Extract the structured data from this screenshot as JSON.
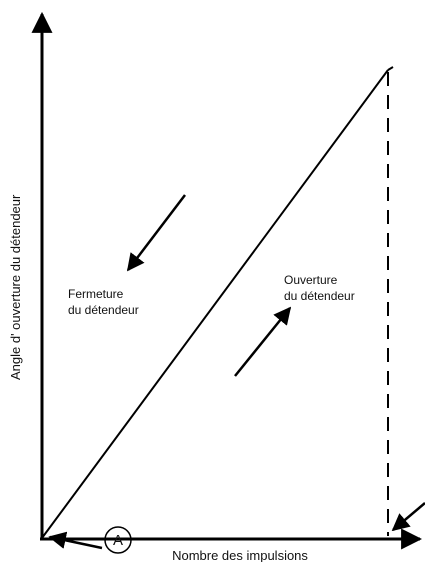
{
  "axes": {
    "y_label": "Angle d'  ouverture du détendeur",
    "x_label": "Nombre des impulsions"
  },
  "closing_label": [
    "Fermeture",
    "du détendeur"
  ],
  "opening_label": [
    "Ouverture",
    "du détendeur"
  ],
  "marker": "A"
}
